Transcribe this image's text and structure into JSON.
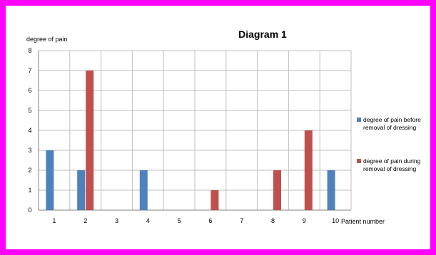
{
  "chart_data": {
    "type": "bar",
    "title": "Diagram 1",
    "ylabel": "degree of pain",
    "xlabel": "Patient number",
    "categories": [
      "1",
      "2",
      "3",
      "4",
      "5",
      "6",
      "7",
      "8",
      "9",
      "10"
    ],
    "ylim": [
      0,
      8
    ],
    "yticks": [
      0,
      1,
      2,
      3,
      4,
      5,
      6,
      7,
      8
    ],
    "grid": true,
    "legend_position": "right",
    "series": [
      {
        "name": "degree of pain before removal of dressing",
        "legend_lines": [
          "degree of pain before",
          "removal of dressing"
        ],
        "color": "#4f81bd",
        "values": [
          3,
          2,
          0,
          2,
          0,
          0,
          0,
          0,
          0,
          2
        ]
      },
      {
        "name": "degree of pain during removal of dressing",
        "legend_lines": [
          "degree of pain during",
          "removal of dressing"
        ],
        "color": "#c0504d",
        "values": [
          0,
          7,
          0,
          0,
          0,
          1,
          0,
          2,
          4,
          0
        ]
      }
    ]
  },
  "colors": {
    "background_border": "#ff00ff",
    "gridline": "#bfbfbf",
    "axis": "#808080"
  }
}
